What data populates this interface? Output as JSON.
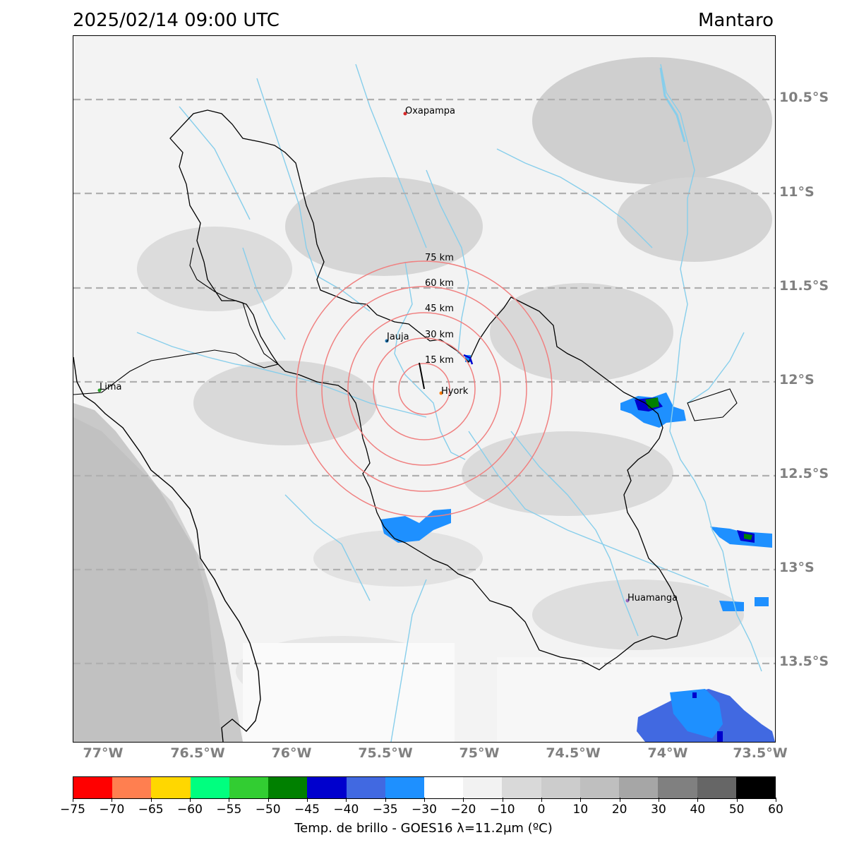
{
  "header": {
    "datetime": "2025/02/14 09:00 UTC",
    "basin": "Mantaro"
  },
  "map": {
    "lat_ticks": [
      "10.5°S",
      "11°S",
      "11.5°S",
      "12°S",
      "12.5°S",
      "13°S",
      "13.5°S"
    ],
    "lon_ticks": [
      "77°W",
      "76.5°W",
      "76°W",
      "75.5°W",
      "75°W",
      "74.5°W",
      "74°W",
      "73.5°W"
    ],
    "cities": [
      {
        "name": "Oxapampa",
        "color": "#d62728"
      },
      {
        "name": "Jauja",
        "color": "#1f77b4"
      },
      {
        "name": "Hyork",
        "color": "#ff7f0e"
      },
      {
        "name": "Lima",
        "color": "#2ca02c"
      },
      {
        "name": "Huamanga",
        "color": "#9467bd"
      }
    ],
    "range_rings": [
      "15 km",
      "30 km",
      "45 km",
      "60 km",
      "75 km"
    ],
    "colors": {
      "ring": "#f08080",
      "river": "#87ceeb",
      "border": "#000000",
      "grid": "#b0b0b0"
    }
  },
  "colorbar": {
    "label": "Temp. de brillo - GOES16 λ=11.2μm (ºC)",
    "ticks": [
      "−75",
      "−70",
      "−65",
      "−60",
      "−55",
      "−50",
      "−45",
      "−40",
      "−35",
      "−30",
      "−20",
      "−10",
      "0",
      "10",
      "20",
      "30",
      "40",
      "50",
      "60"
    ],
    "colors": [
      "#ff0000",
      "#ff7f50",
      "#ffd700",
      "#00ff7f",
      "#32cd32",
      "#008000",
      "#0000cd",
      "#4169e1",
      "#1e90ff",
      "#ffffff",
      "#f2f2f2",
      "#d9d9d9",
      "#cccccc",
      "#bfbfbf",
      "#a6a6a6",
      "#808080",
      "#666666",
      "#000000"
    ]
  }
}
